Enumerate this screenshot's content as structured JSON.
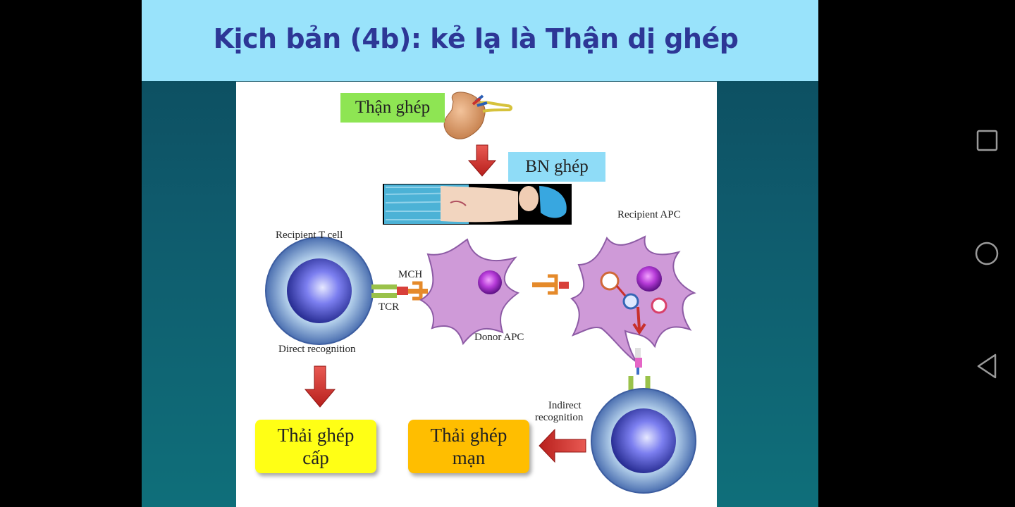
{
  "slide": {
    "title": "Kịch bản (4b): kẻ lạ là Thận dị ghép"
  },
  "figure": {
    "label_kidney": "Thận ghép",
    "label_patient": "BN ghép",
    "recipient_t_cell": "Recipient T cell",
    "mch": "MCH",
    "tcr": "TCR",
    "donor_apc": "Donor APC",
    "recipient_apc": "Recipient APC",
    "direct_recognition": "Direct recognition",
    "indirect_recognition_line1": "Indirect",
    "indirect_recognition_line2": "recognition",
    "outcome_acute_line1": "Thải ghép",
    "outcome_acute_line2": "cấp",
    "outcome_chronic_line1": "Thải ghép",
    "outcome_chronic_line2": "mạn"
  },
  "navbar": {
    "icons": [
      "recents-square-icon",
      "home-circle-icon",
      "back-triangle-icon"
    ]
  },
  "colors": {
    "header_bg": "#99e3fb",
    "title_text": "#2d3796",
    "kidney_label_bg": "#8ee553",
    "patient_label_bg": "#8fdcf7",
    "acute_bg": "#ffff15",
    "chronic_bg": "#ffbe00",
    "arrow_red": "#d93a36"
  }
}
